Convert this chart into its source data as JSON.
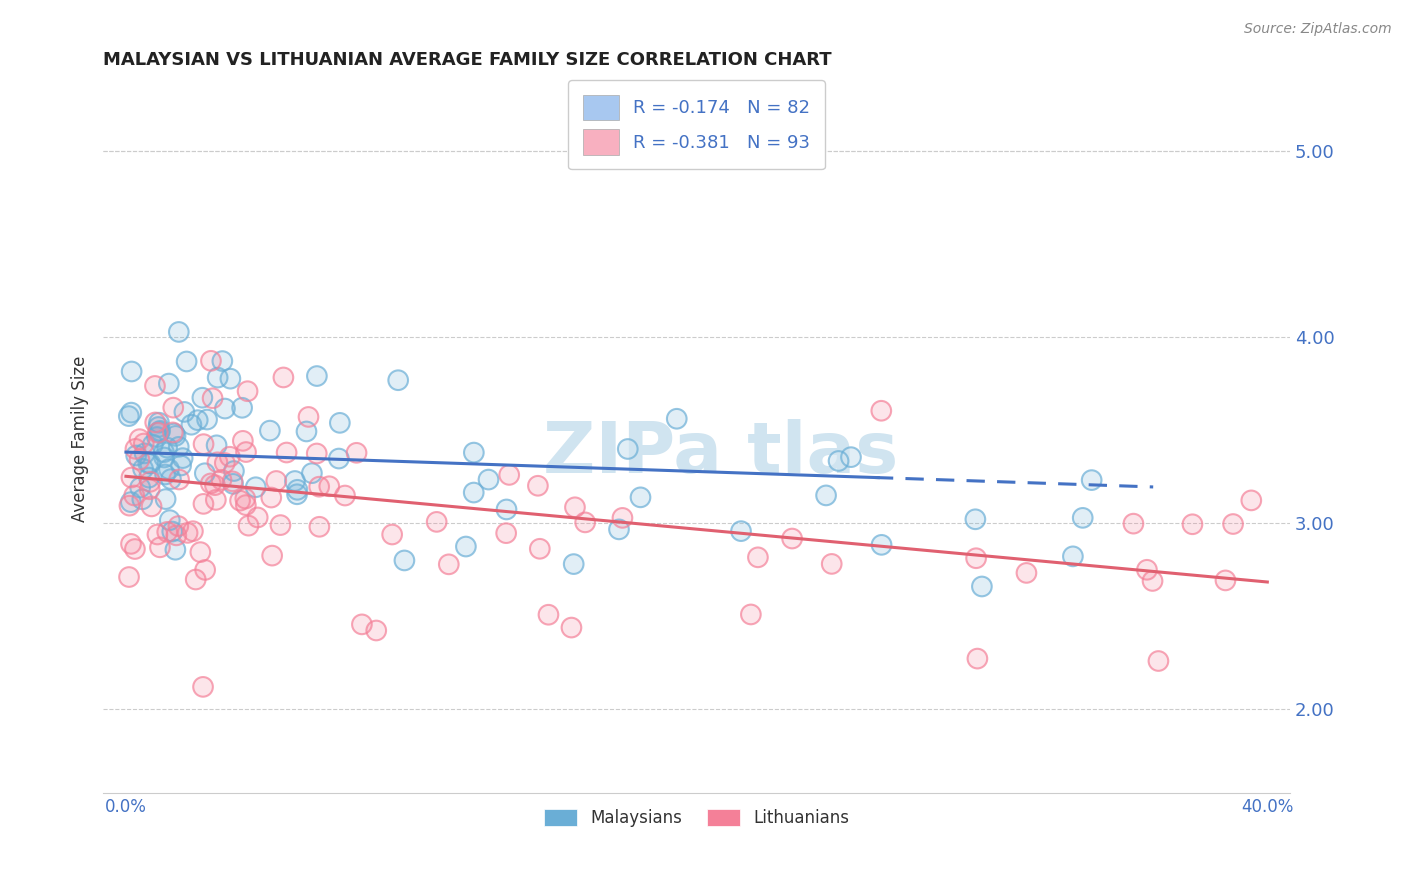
{
  "title": "MALAYSIAN VS LITHUANIAN AVERAGE FAMILY SIZE CORRELATION CHART",
  "source": "Source: ZipAtlas.com",
  "ylabel": "Average Family Size",
  "ylim": [
    1.55,
    5.35
  ],
  "xlim": [
    -0.008,
    0.408
  ],
  "yticks": [
    2.0,
    3.0,
    4.0,
    5.0
  ],
  "xtick_positions": [
    0.0,
    0.4
  ],
  "xtick_labels": [
    "0.0%",
    "40.0%"
  ],
  "legend_labels": [
    "R = -0.174   N = 82",
    "R = -0.381   N = 93"
  ],
  "legend_colors": [
    "#a8c8f0",
    "#f8b0c0"
  ],
  "series1_color": "#6aaed6",
  "series2_color": "#f48098",
  "series1_line_color": "#4472c4",
  "series2_line_color": "#e06070",
  "watermark_color": "#d0e4f0",
  "title_fontsize": 13,
  "axis_color": "#4472c4",
  "background_color": "#ffffff",
  "grid_color": "#cccccc",
  "series1_N": 82,
  "series2_N": 93,
  "series1_intercept": 3.38,
  "series1_slope": -0.52,
  "series2_intercept": 3.25,
  "series2_slope": -1.42
}
